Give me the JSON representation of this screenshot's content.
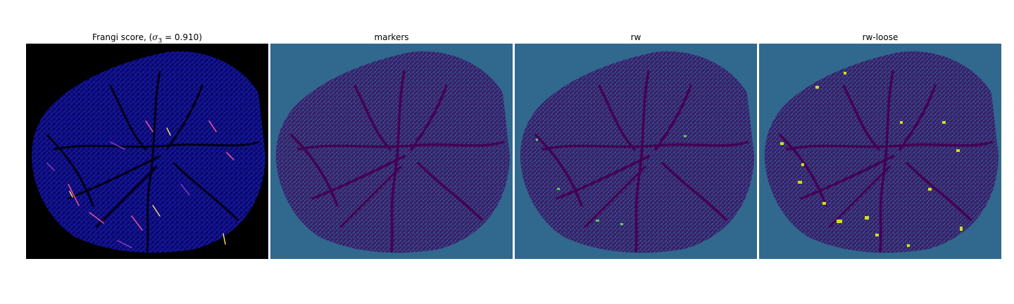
{
  "panels": [
    {
      "title_prefix": "Frangi score, (",
      "sym": "σ",
      "sub": "3",
      "title_suffix": " = 0.910)"
    },
    {
      "title": "markers"
    },
    {
      "title": "rw"
    },
    {
      "title": "rw-loose"
    }
  ],
  "colors": {
    "frangi_background": "#000000",
    "frangi_tissue": "#0b0b7a",
    "frangi_highlight_1": "#e0509a",
    "frangi_highlight_2": "#ffe36a",
    "viridis_background": "#31688e",
    "viridis_low": "#440154",
    "viridis_mid": "#2a788e",
    "viridis_high": "#cde11d"
  }
}
